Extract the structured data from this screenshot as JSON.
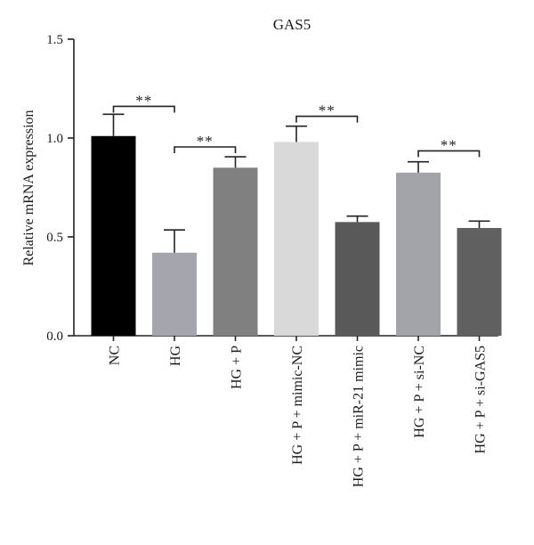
{
  "chart_data": {
    "type": "bar",
    "title": "GAS5",
    "ylabel": "Relative mRNA expression",
    "xlabel": "",
    "ylim": [
      0,
      1.5
    ],
    "yticks": [
      "0.0",
      "0.5",
      "1.0",
      "1.5"
    ],
    "ytick_values": [
      0,
      0.5,
      1.0,
      1.5
    ],
    "categories": [
      "NC",
      "HG",
      "HG + P",
      "HG + P + mimic-NC",
      "HG + P + miR-21 mimic",
      "HG + P + si-NC",
      "HG + P + si-GAS5"
    ],
    "values": [
      1.01,
      0.42,
      0.85,
      0.98,
      0.575,
      0.825,
      0.545
    ],
    "errors": [
      0.11,
      0.115,
      0.055,
      0.08,
      0.03,
      0.055,
      0.035
    ],
    "bar_colors": [
      "#000000",
      "#a5a5ad",
      "#808080",
      "#d9d9d9",
      "#595959",
      "#a3a3aa",
      "#606060"
    ],
    "grid": false,
    "significance": [
      {
        "from": 0,
        "to": 1,
        "label": "**",
        "y": 1.16
      },
      {
        "from": 1,
        "to": 2,
        "label": "**",
        "y": 0.955
      },
      {
        "from": 3,
        "to": 4,
        "label": "**",
        "y": 1.11
      },
      {
        "from": 5,
        "to": 6,
        "label": "**",
        "y": 0.935
      }
    ]
  }
}
